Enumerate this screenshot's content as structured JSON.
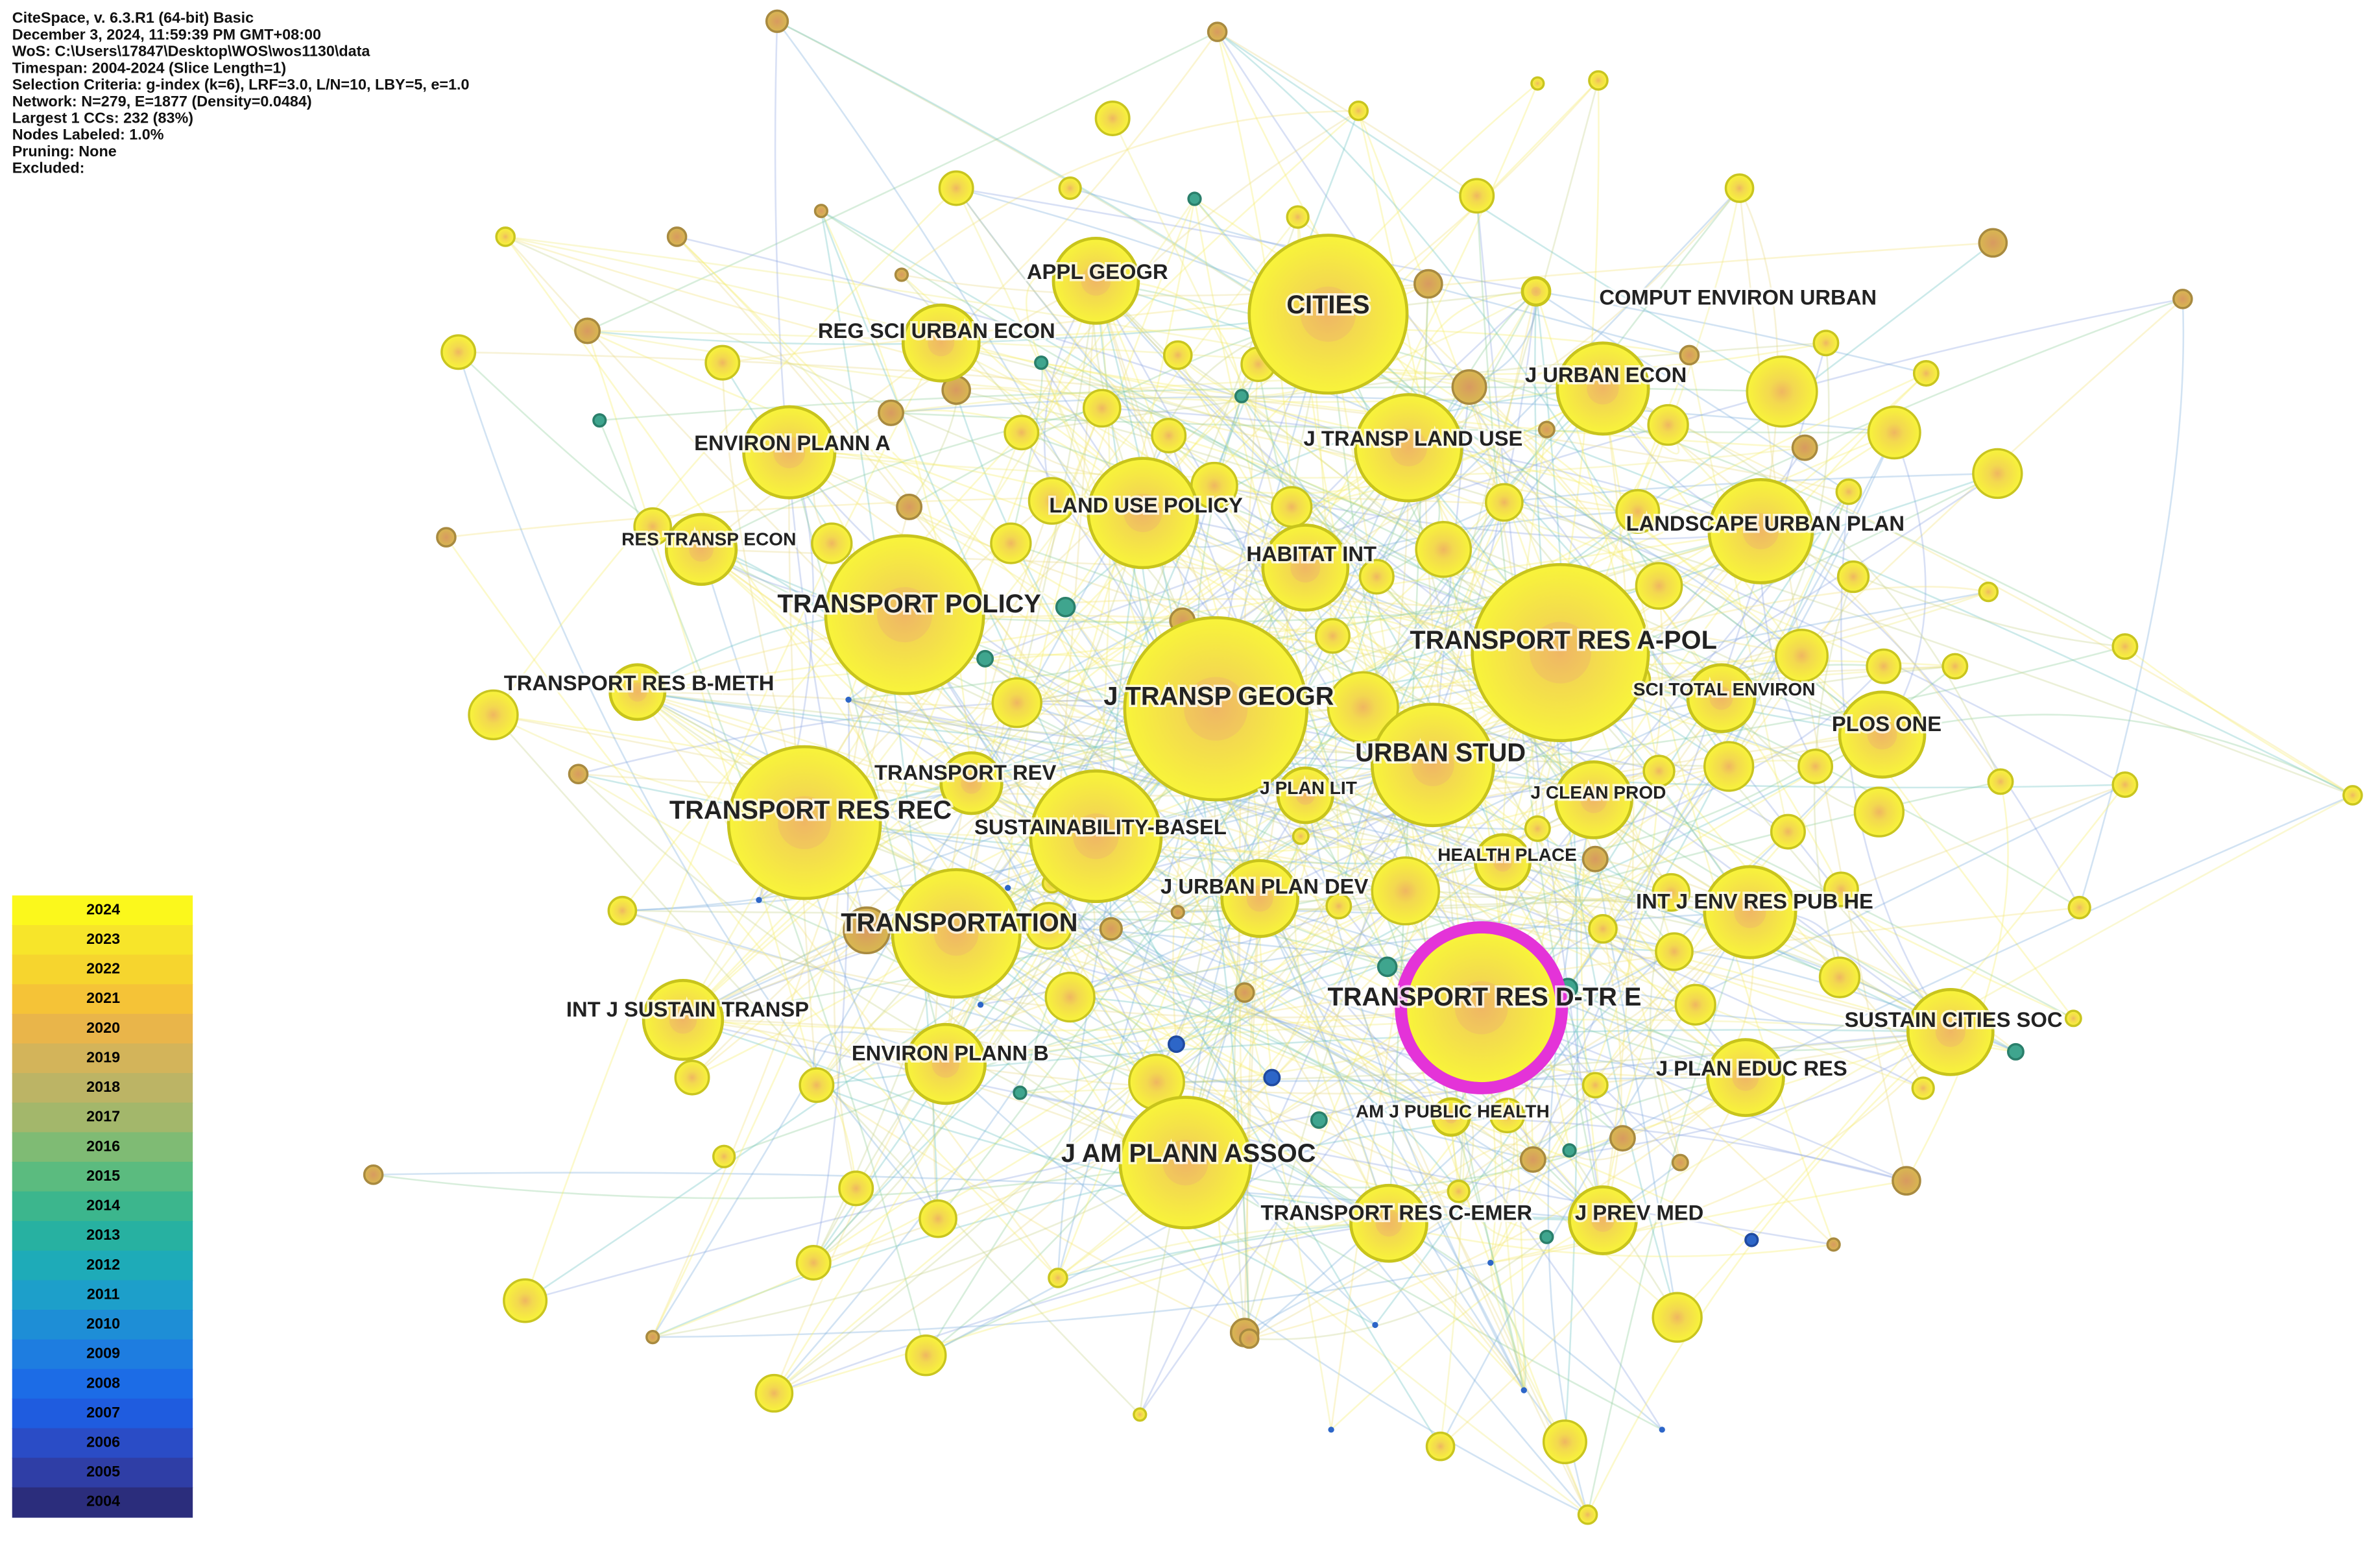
{
  "header": {
    "lines": [
      "CiteSpace, v. 6.3.R1 (64-bit) Basic",
      "December 3, 2024, 11:59:39 PM GMT+08:00",
      "WoS: C:\\Users\\17847\\Desktop\\WOS\\wos1130\\data",
      "Timespan: 2004-2024 (Slice Length=1)",
      "Selection Criteria: g-index (k=6), LRF=3.0, L/N=10, LBY=5, e=1.0",
      "Network: N=279, E=1877 (Density=0.0484)",
      "Largest 1 CCs: 232 (83%)",
      "Nodes Labeled: 1.0%",
      "Pruning: None",
      "Excluded:"
    ]
  },
  "nodes": [
    {
      "label": "CITIES"
    },
    {
      "label": "APPL GEOGR"
    },
    {
      "label": "COMPUT ENVIRON URBAN"
    },
    {
      "label": "REG SCI URBAN ECON"
    },
    {
      "label": "J URBAN ECON"
    },
    {
      "label": "ENVIRON PLANN A"
    },
    {
      "label": "J TRANSP LAND USE"
    },
    {
      "label": "LAND USE POLICY"
    },
    {
      "label": "LANDSCAPE URBAN PLAN"
    },
    {
      "label": "RES TRANSP ECON"
    },
    {
      "label": "HABITAT INT"
    },
    {
      "label": "TRANSPORT POLICY"
    },
    {
      "label": "TRANSPORT RES A-POL"
    },
    {
      "label": "TRANSPORT RES B-METH"
    },
    {
      "label": "SCI TOTAL ENVIRON"
    },
    {
      "label": "J TRANSP GEOGR"
    },
    {
      "label": "PLOS ONE"
    },
    {
      "label": "URBAN STUD"
    },
    {
      "label": "TRANSPORT RES REC"
    },
    {
      "label": "TRANSPORT REV"
    },
    {
      "label": "J PLAN LIT"
    },
    {
      "label": "J CLEAN PROD"
    },
    {
      "label": "SUSTAINABILITY-BASEL"
    },
    {
      "label": "HEALTH PLACE"
    },
    {
      "label": "J URBAN PLAN DEV"
    },
    {
      "label": "INT J ENV RES PUB HE"
    },
    {
      "label": "TRANSPORTATION"
    },
    {
      "label": "TRANSPORT RES D-TR E"
    },
    {
      "label": "INT J SUSTAIN TRANSP"
    },
    {
      "label": "SUSTAIN CITIES SOC"
    },
    {
      "label": "ENVIRON PLANN B"
    },
    {
      "label": "J PLAN EDUC RES"
    },
    {
      "label": "AM J PUBLIC HEALTH"
    },
    {
      "label": "J AM PLANN ASSOC"
    },
    {
      "label": "TRANSPORT RES C-EMER"
    },
    {
      "label": "J PREV MED"
    }
  ],
  "legend": [
    {
      "label": "2024",
      "color": "#fbf81c"
    },
    {
      "label": "2023",
      "color": "#f7e52a"
    },
    {
      "label": "2022",
      "color": "#f6d52e"
    },
    {
      "label": "2021",
      "color": "#f5c337"
    },
    {
      "label": "2020",
      "color": "#e9b54a"
    },
    {
      "label": "2019",
      "color": "#d3b45a"
    },
    {
      "label": "2018",
      "color": "#bcb465"
    },
    {
      "label": "2017",
      "color": "#a3b76b"
    },
    {
      "label": "2016",
      "color": "#7fbb74"
    },
    {
      "label": "2015",
      "color": "#5bbb7f"
    },
    {
      "label": "2014",
      "color": "#3cb68d"
    },
    {
      "label": "2013",
      "color": "#27b1a1"
    },
    {
      "label": "2012",
      "color": "#1eabb8"
    },
    {
      "label": "2011",
      "color": "#1d9fca"
    },
    {
      "label": "2010",
      "color": "#1e8ed6"
    },
    {
      "label": "2009",
      "color": "#1e7de0"
    },
    {
      "label": "2008",
      "color": "#1c6ce6"
    },
    {
      "label": "2007",
      "color": "#1f5cdf"
    },
    {
      "label": "2006",
      "color": "#2a4cc6"
    },
    {
      "label": "2005",
      "color": "#2f3ea6"
    },
    {
      "label": "2004",
      "color": "#2b2d7c"
    }
  ]
}
